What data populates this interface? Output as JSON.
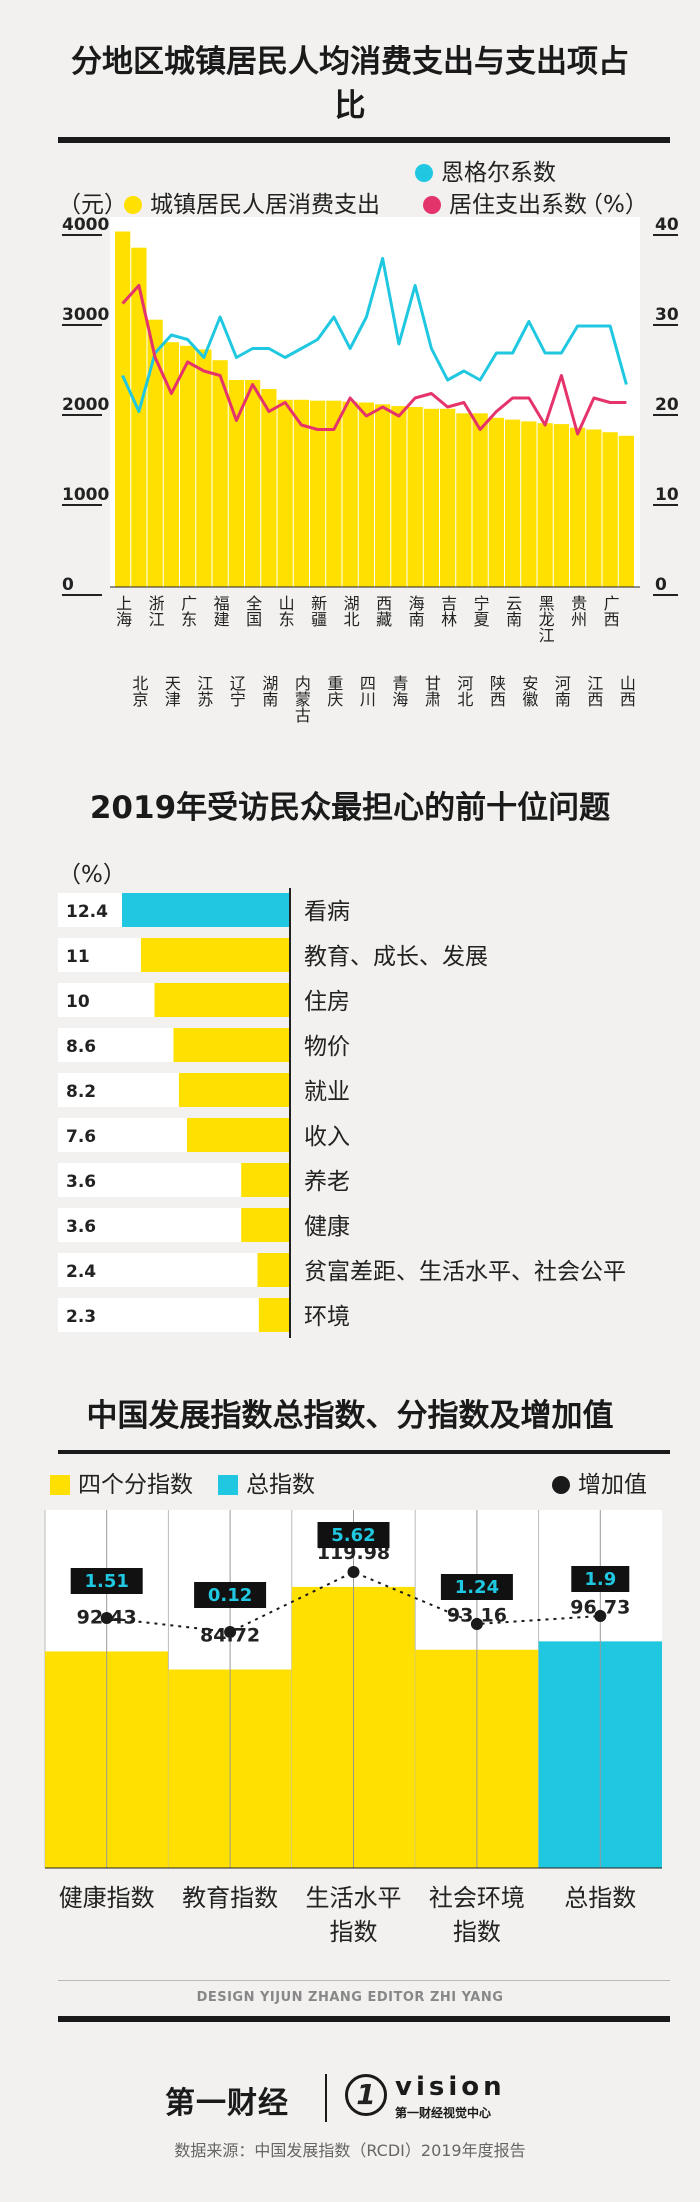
{
  "chart_data": [
    {
      "type": "bar",
      "title": "分地区城镇居民人均消费支出与支出项占比",
      "unit_left": "（元）",
      "unit_right": "（%）",
      "legend": {
        "engel": "恩格尔系数",
        "consumption": "城镇居民人居消费支出",
        "housing": "居住支出系数"
      },
      "colors": {
        "consumption": "#ffe000",
        "engel": "#1fc8e0",
        "housing": "#e5336b"
      },
      "categories": [
        "上海",
        "北京",
        "浙江",
        "天津",
        "广东",
        "江苏",
        "福建",
        "辽宁",
        "全国",
        "湖南",
        "山东",
        "内蒙古",
        "新疆",
        "重庆",
        "湖北",
        "四川",
        "西藏",
        "青海",
        "海南",
        "甘肃",
        "吉林",
        "河北",
        "宁夏",
        "陕西",
        "云南",
        "安徽",
        "黑龙江",
        "河南",
        "贵州",
        "江西",
        "广西",
        "山西"
      ],
      "yticks_left": [
        "0",
        "1000",
        "2000",
        "3000",
        "4000"
      ],
      "yticks_right": [
        "10",
        "20",
        "30",
        "40"
      ],
      "ylim_left": [
        0,
        4000
      ],
      "ylim_right": [
        0,
        40
      ],
      "series": [
        {
          "name": "城镇居民人居消费支出",
          "values": [
            3950,
            3770,
            2970,
            2720,
            2680,
            2640,
            2520,
            2300,
            2300,
            2200,
            2080,
            2080,
            2070,
            2070,
            2060,
            2050,
            2030,
            2010,
            2000,
            1980,
            1980,
            1930,
            1930,
            1880,
            1860,
            1840,
            1820,
            1810,
            1770,
            1750,
            1720,
            1680
          ]
        },
        {
          "name": "恩格尔系数",
          "values": [
            23.5,
            19.5,
            26,
            28,
            27.5,
            25.5,
            30,
            25.5,
            26.5,
            26.5,
            25.5,
            26.5,
            27.5,
            30,
            26.5,
            30,
            36.5,
            27,
            33.5,
            26.5,
            23,
            24,
            23,
            26,
            26,
            29.5,
            26,
            26,
            29,
            29,
            29,
            22.5
          ]
        },
        {
          "name": "居住支出系数",
          "values": [
            31.5,
            33.5,
            25.5,
            21.5,
            25,
            24,
            23.5,
            18.5,
            22.5,
            19.5,
            20.5,
            18,
            17.5,
            17.5,
            21,
            19,
            20,
            19,
            21,
            21.5,
            20,
            20.5,
            17.5,
            19.5,
            21,
            21,
            18,
            23.5,
            17,
            21,
            20.5,
            20.5
          ]
        }
      ]
    },
    {
      "type": "bar",
      "title": "2019年受访民众最担心的前十位问题",
      "unit": "（%）",
      "colors": {
        "top": "#1fc8e0",
        "rest": "#ffe000"
      },
      "categories": [
        "看病",
        "教育、成长、发展",
        "住房",
        "物价",
        "就业",
        "收入",
        "养老",
        "健康",
        "贫富差距、生活水平、社会公平",
        "环境"
      ],
      "values": [
        12.4,
        11,
        10,
        8.6,
        8.2,
        7.6,
        3.6,
        3.6,
        2.4,
        2.3
      ],
      "value_labels": [
        "12.4",
        "11",
        "10",
        "8.6",
        "8.2",
        "7.6",
        "3.6",
        "3.6",
        "2.4",
        "2.3"
      ]
    },
    {
      "type": "bar",
      "title": "中国发展指数总指数、分指数及增加值",
      "legend": {
        "sub": "四个分指数",
        "total": "总指数",
        "increase": "增加值"
      },
      "colors": {
        "sub": "#ffe000",
        "total": "#1fc8e0",
        "increase": "#1a1a1a"
      },
      "categories": [
        "健康指数",
        "教育指数",
        "生活水平指数",
        "社会环境指数",
        "总指数"
      ],
      "category_lines": [
        [
          "健康指数"
        ],
        [
          "教育指数"
        ],
        [
          "生活水平",
          "指数"
        ],
        [
          "社会环境",
          "指数"
        ],
        [
          "总指数"
        ]
      ],
      "values": [
        92.43,
        84.72,
        119.98,
        93.16,
        96.73
      ],
      "value_labels": [
        "92.43",
        "84.72",
        "119.98",
        "93.16",
        "96.73"
      ],
      "increase_values": [
        1.51,
        0.12,
        5.62,
        1.24,
        1.9
      ],
      "increase_labels": [
        "1.51",
        "0.12",
        "5.62",
        "1.24",
        "1.9"
      ]
    }
  ],
  "footer": {
    "credit": "DESIGN YIJUN ZHANG    EDITOR ZHI YANG",
    "brand": "第一财经",
    "vision": "vision",
    "vision_sub": "第一财经视觉中心",
    "source": "数据来源：中国发展指数（RCDI）2019年度报告"
  }
}
